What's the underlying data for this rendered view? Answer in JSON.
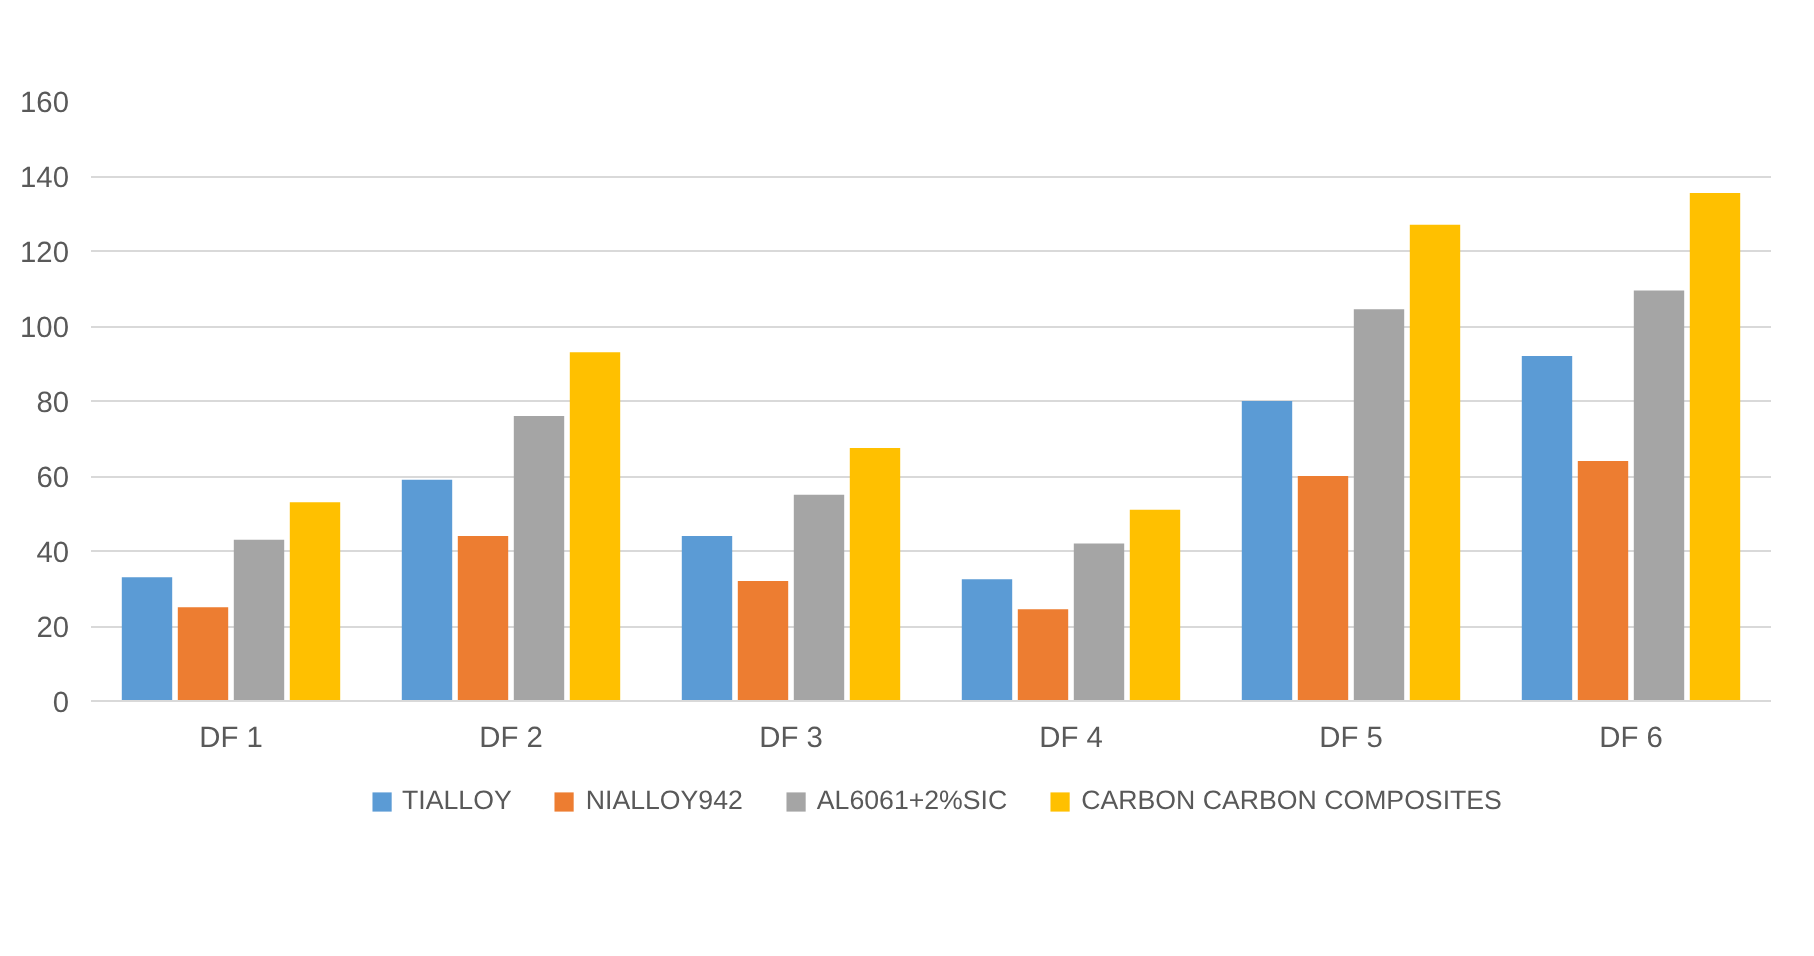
{
  "chart_data": {
    "type": "bar",
    "categories": [
      "DF 1",
      "DF 2",
      "DF 3",
      "DF 4",
      "DF 5",
      "DF 6"
    ],
    "series": [
      {
        "name": "TIALLOY",
        "color": "#5b9bd5",
        "values": [
          33,
          59,
          44,
          32.5,
          80,
          92
        ]
      },
      {
        "name": "NIALLOY942",
        "color": "#ed7d31",
        "values": [
          25,
          44,
          32,
          24.5,
          60,
          64
        ]
      },
      {
        "name": "AL6061+2%SIC",
        "color": "#a5a5a5",
        "values": [
          43,
          76,
          55,
          42,
          104.5,
          109.5
        ]
      },
      {
        "name": "CARBON CARBON COMPOSITES",
        "color": "#ffc000",
        "values": [
          53,
          93,
          67.5,
          51,
          127,
          135.5
        ]
      }
    ],
    "ylim": [
      0,
      160
    ],
    "yticks": [
      0,
      20,
      40,
      60,
      80,
      100,
      120,
      140,
      160
    ],
    "grid": "y",
    "legend": "bottom"
  }
}
